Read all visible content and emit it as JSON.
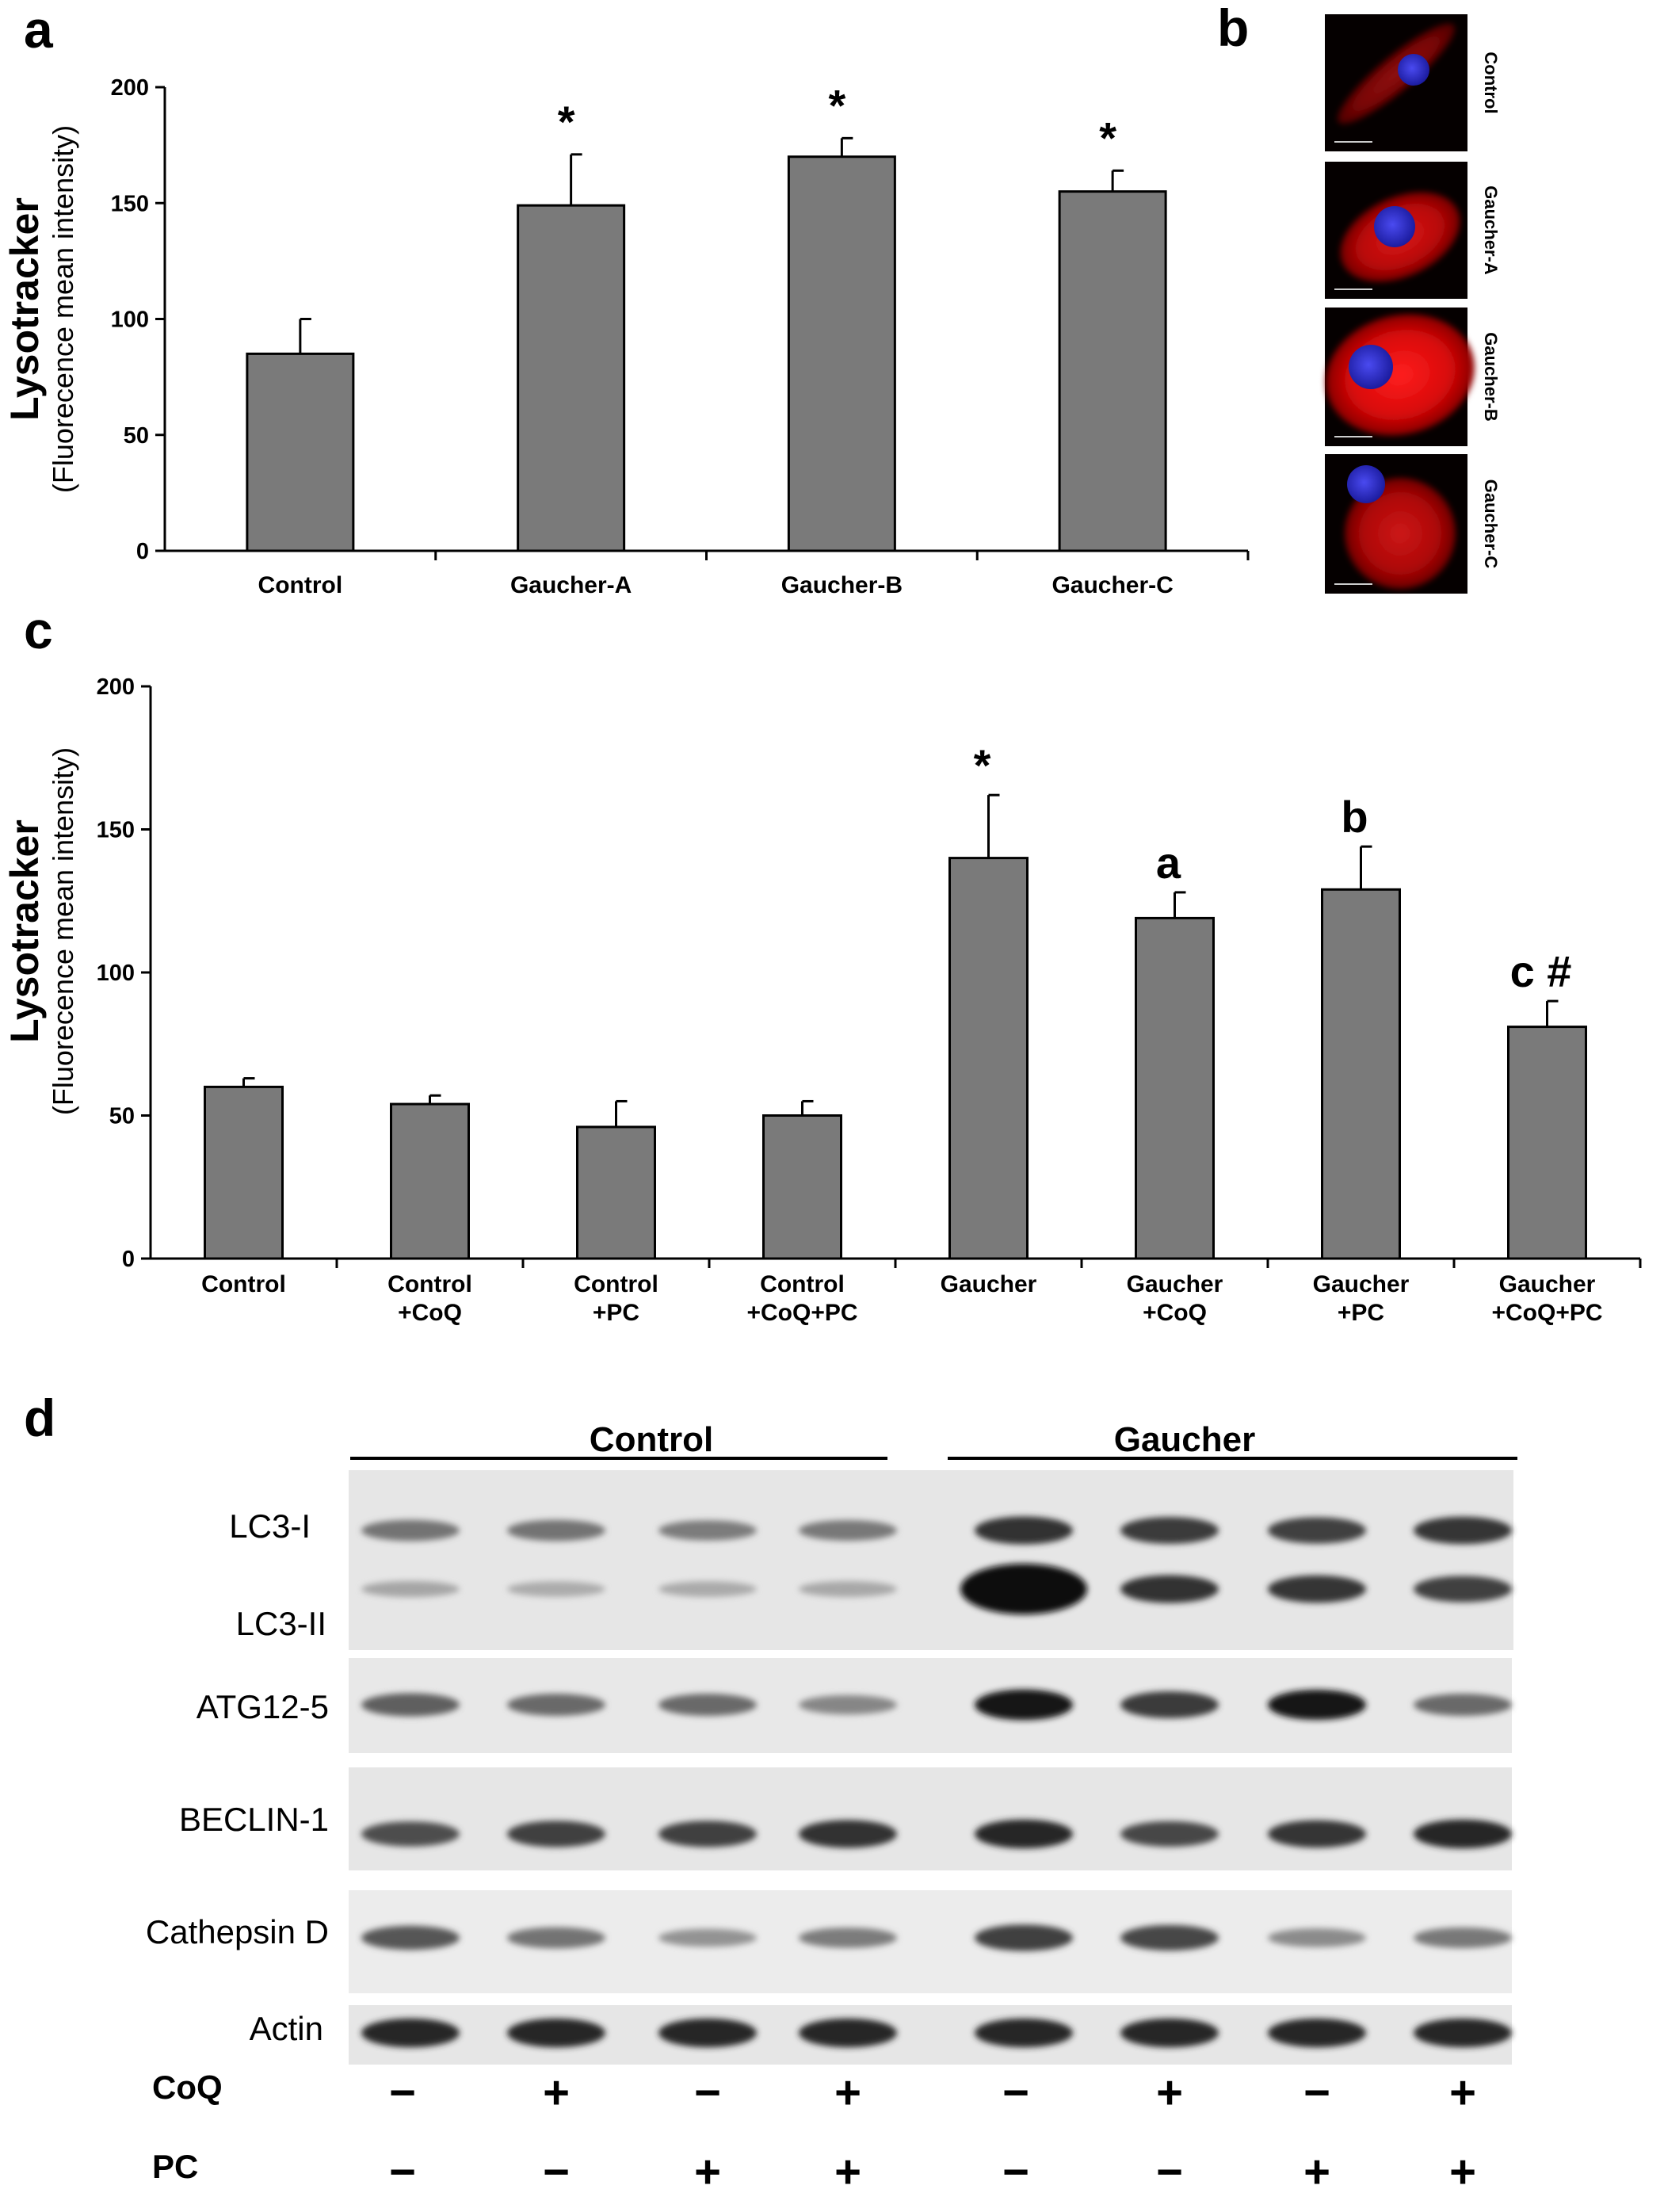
{
  "panels": {
    "a": "a",
    "b": "b",
    "c": "c",
    "d": "d"
  },
  "chart_data": [
    {
      "id": "panel-a",
      "type": "bar",
      "ylabel": "Lysotracker",
      "ylabel_sub": "(Fluorecence mean intensity)",
      "ylim": [
        0,
        200
      ],
      "yticks": [
        "0",
        "50",
        "100",
        "150",
        "200"
      ],
      "categories": [
        [
          "Control"
        ],
        [
          "Gaucher-A"
        ],
        [
          "Gaucher-B"
        ],
        [
          "Gaucher-C"
        ]
      ],
      "values": [
        85,
        149,
        170,
        155
      ],
      "errors": [
        15,
        22,
        8,
        9
      ],
      "annotations": [
        "",
        "*",
        "*",
        "*"
      ],
      "bar_color": "#7a7a7a"
    },
    {
      "id": "panel-c",
      "type": "bar",
      "ylabel": "Lysotracker",
      "ylabel_sub": "(Fluorecence mean intensity)",
      "ylim": [
        0,
        200
      ],
      "yticks": [
        "0",
        "50",
        "100",
        "150",
        "200"
      ],
      "categories": [
        [
          "Control"
        ],
        [
          "Control",
          "+CoQ"
        ],
        [
          "Control",
          "+PC"
        ],
        [
          "Control",
          "+CoQ+PC"
        ],
        [
          "Gaucher"
        ],
        [
          "Gaucher",
          "+CoQ"
        ],
        [
          "Gaucher",
          "+PC"
        ],
        [
          "Gaucher",
          "+CoQ+PC"
        ]
      ],
      "values": [
        60,
        54,
        46,
        50,
        140,
        119,
        129,
        81
      ],
      "errors": [
        3,
        3,
        9,
        5,
        22,
        9,
        15,
        9
      ],
      "annotations": [
        "",
        "",
        "",
        "",
        "*",
        "a",
        "b",
        "c #"
      ],
      "bar_color": "#7a7a7a"
    }
  ],
  "micrographs": {
    "labels": [
      "Control",
      "Gaucher-A",
      "Gaucher-B",
      "Gaucher-C"
    ]
  },
  "western_blot": {
    "groups": [
      "Control",
      "Gaucher"
    ],
    "rows": [
      {
        "label": "LC3-I",
        "sublabel": "LC3-II",
        "bands_top": [
          0.45,
          0.45,
          0.4,
          0.42,
          0.8,
          0.75,
          0.72,
          0.78
        ],
        "bands_bottom": [
          0.18,
          0.15,
          0.16,
          0.17,
          1.0,
          0.8,
          0.78,
          0.72
        ]
      },
      {
        "label": "ATG12-5",
        "bands": [
          0.55,
          0.5,
          0.5,
          0.35,
          0.95,
          0.75,
          0.92,
          0.5
        ]
      },
      {
        "label": "BECLIN-1",
        "bands": [
          0.65,
          0.72,
          0.72,
          0.8,
          0.85,
          0.68,
          0.78,
          0.85
        ]
      },
      {
        "label": "Cathepsin  D",
        "bands": [
          0.6,
          0.45,
          0.28,
          0.4,
          0.72,
          0.68,
          0.32,
          0.42
        ]
      },
      {
        "label": "Actin",
        "bands": [
          0.85,
          0.85,
          0.85,
          0.85,
          0.85,
          0.85,
          0.85,
          0.85
        ]
      }
    ],
    "treatments": [
      {
        "label": "CoQ",
        "signs": [
          "−",
          "+",
          "−",
          "+",
          "−",
          "+",
          "−",
          "+"
        ]
      },
      {
        "label": "PC",
        "signs": [
          "−",
          "−",
          "+",
          "+",
          "−",
          "−",
          "+",
          "+"
        ]
      }
    ]
  }
}
